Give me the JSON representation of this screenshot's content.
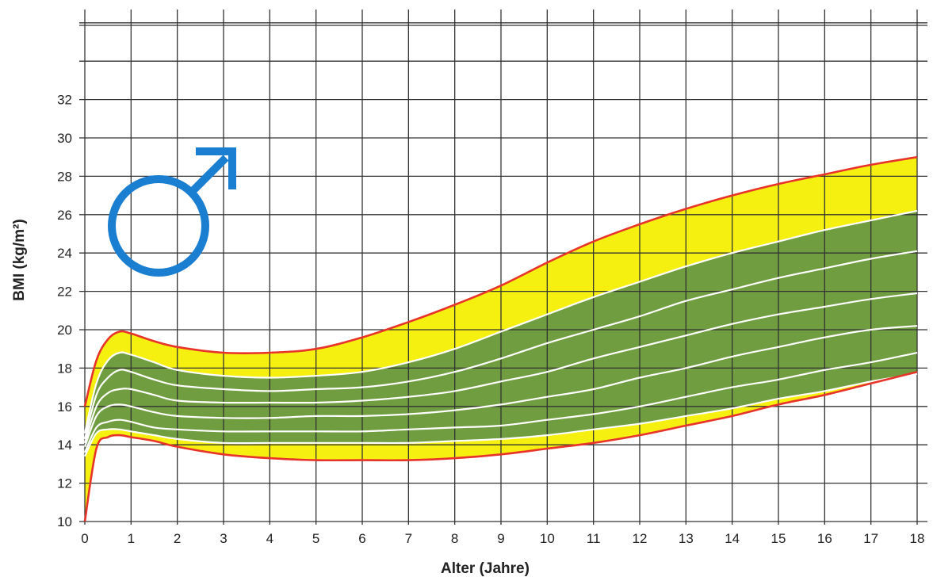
{
  "chart_data": {
    "type": "area",
    "title": "",
    "xlabel": "Alter (Jahre)",
    "ylabel": "BMI (kg/m²)",
    "xlim": [
      0,
      18
    ],
    "ylim": [
      10,
      36
    ],
    "grid": true,
    "x_ticks": [
      "0",
      "1",
      "2",
      "3",
      "4",
      "5",
      "6",
      "7",
      "8",
      "9",
      "10",
      "11",
      "12",
      "13",
      "14",
      "15",
      "16",
      "17",
      "18"
    ],
    "y_ticks": [
      "10",
      "12",
      "14",
      "16",
      "18",
      "20",
      "22",
      "24",
      "26",
      "28",
      "30",
      "32"
    ],
    "x": [
      0,
      0.25,
      0.5,
      0.75,
      1,
      1.5,
      2,
      3,
      4,
      5,
      6,
      7,
      8,
      9,
      10,
      11,
      12,
      13,
      14,
      15,
      16,
      17,
      18
    ],
    "series": [
      {
        "values": [
          16.0,
          18.4,
          19.5,
          19.9,
          19.8,
          19.4,
          19.1,
          18.8,
          18.8,
          19.0,
          19.6,
          20.4,
          21.3,
          22.3,
          23.5,
          24.6,
          25.5,
          26.3,
          27.0,
          27.6,
          28.1,
          28.6,
          29.0
        ]
      },
      {
        "values": [
          14.6,
          17.2,
          18.4,
          18.8,
          18.7,
          18.3,
          17.9,
          17.6,
          17.5,
          17.6,
          17.8,
          18.3,
          19.0,
          19.9,
          20.8,
          21.7,
          22.5,
          23.3,
          24.0,
          24.6,
          25.2,
          25.7,
          26.2
        ]
      },
      {
        "values": [
          14.3,
          16.6,
          17.5,
          17.9,
          17.8,
          17.4,
          17.1,
          16.9,
          16.8,
          16.9,
          17.0,
          17.3,
          17.8,
          18.5,
          19.3,
          20.0,
          20.7,
          21.5,
          22.1,
          22.7,
          23.2,
          23.7,
          24.1
        ]
      },
      {
        "values": [
          14.1,
          16.0,
          16.7,
          16.9,
          16.9,
          16.6,
          16.3,
          16.2,
          16.2,
          16.2,
          16.3,
          16.5,
          16.8,
          17.3,
          17.8,
          18.5,
          19.1,
          19.7,
          20.3,
          20.8,
          21.2,
          21.6,
          21.9
        ]
      },
      {
        "values": [
          13.9,
          15.5,
          16.0,
          16.1,
          16.0,
          15.7,
          15.5,
          15.4,
          15.4,
          15.5,
          15.5,
          15.6,
          15.8,
          16.1,
          16.5,
          16.9,
          17.5,
          18.0,
          18.6,
          19.1,
          19.6,
          20.0,
          20.2
        ]
      },
      {
        "values": [
          13.6,
          14.9,
          15.2,
          15.3,
          15.2,
          14.9,
          14.8,
          14.7,
          14.7,
          14.7,
          14.7,
          14.8,
          14.9,
          15.0,
          15.3,
          15.6,
          16.0,
          16.5,
          17.0,
          17.4,
          17.9,
          18.3,
          18.8
        ]
      },
      {
        "values": [
          13.4,
          14.6,
          14.8,
          14.8,
          14.7,
          14.5,
          14.3,
          14.1,
          14.1,
          14.1,
          14.1,
          14.1,
          14.2,
          14.3,
          14.5,
          14.8,
          15.1,
          15.5,
          15.9,
          16.4,
          16.8,
          17.3,
          17.7
        ]
      },
      {
        "values": [
          10.0,
          13.8,
          14.4,
          14.5,
          14.4,
          14.2,
          13.9,
          13.5,
          13.3,
          13.2,
          13.2,
          13.2,
          13.3,
          13.5,
          13.8,
          14.1,
          14.5,
          15.0,
          15.5,
          16.1,
          16.6,
          17.2,
          17.8
        ]
      }
    ],
    "colors": {
      "outer_band": "#f5f010",
      "inner_band": "#6f9d3f",
      "outer_line": "#e8332a",
      "inner_line": "#ffffff",
      "grid": "#333333",
      "symbol": "#1b7fd1"
    },
    "symbol": "male-symbol"
  }
}
